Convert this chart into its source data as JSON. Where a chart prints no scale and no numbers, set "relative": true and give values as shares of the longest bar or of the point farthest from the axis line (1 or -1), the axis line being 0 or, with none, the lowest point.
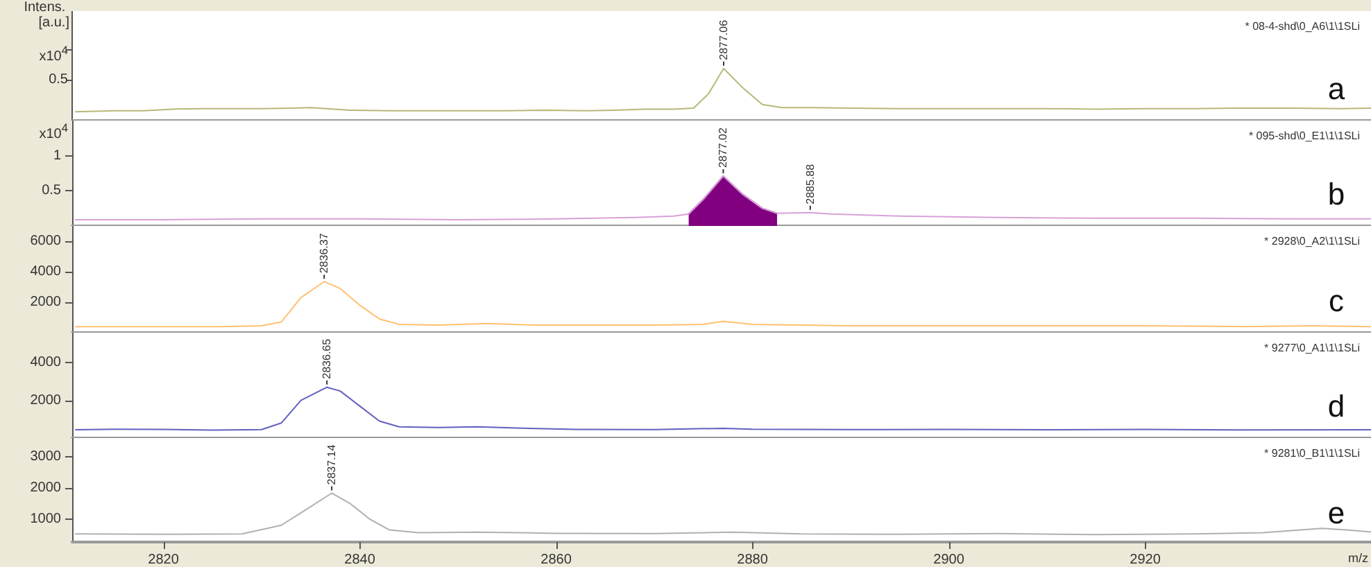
{
  "chart_data": [
    {
      "type": "line",
      "title": "* 08-4-shd\\0_A6\\1\\1SLi",
      "subtitle": "a",
      "ylabel": "Intens. [a.u.]",
      "annotations": [
        "x10$^{4}$",
        "0.5",
        {
          "text": "2877.06",
          "x": 2877.06,
          "y": 1
        }
      ],
      "relative": true,
      "xlim": [
        2810.7,
        2943
      ],
      "tick_labels": "y",
      "marker": "none",
      "series": [
        {
          "color": "#b8b878",
          "x": [
            2811,
            2815,
            2818,
            2821,
            2824,
            2827,
            2830,
            2833,
            2835,
            2839,
            2843,
            2847,
            2851,
            2855,
            2859,
            2863,
            2866,
            2869,
            2872,
            2874,
            2875.5,
            2877.06,
            2879,
            2881,
            2883,
            2886,
            2890,
            2895,
            2900,
            2905,
            2910,
            2915,
            2920,
            2925,
            2930,
            2935,
            2940,
            2943
          ],
          "values": [
            0.17,
            0.19,
            0.19,
            0.22,
            0.23,
            0.23,
            0.23,
            0.24,
            0.25,
            0.2,
            0.19,
            0.19,
            0.19,
            0.19,
            0.2,
            0.19,
            0.2,
            0.22,
            0.22,
            0.24,
            0.51,
            1,
            0.63,
            0.31,
            0.25,
            0.25,
            0.24,
            0.23,
            0.23,
            0.23,
            0.23,
            0.22,
            0.23,
            0.23,
            0.24,
            0.24,
            0.23,
            0.24
          ]
        }
      ]
    },
    {
      "type": "line",
      "title": "* 095-shd\\0_E1\\1\\1SLi",
      "subtitle": "b",
      "annotations": [
        "x10$^{4}$",
        {
          "text": "2877.02",
          "x": 2877.02,
          "y": 0.71
        },
        {
          "text": "2885.88",
          "x": 2885.88,
          "y": 0.19
        }
      ],
      "xlim": [
        2810.7,
        2943
      ],
      "ylim": [
        0,
        1.5
      ],
      "yticks": [
        0.5,
        1.0
      ],
      "tick_labels": "y",
      "marker": "none",
      "series": [
        {
          "type": "area",
          "color": "#800080",
          "x": [
            2873.5,
            2875,
            2877.02,
            2879,
            2881,
            2882.5
          ],
          "values": [
            0.17,
            0.38,
            0.71,
            0.45,
            0.25,
            0.18
          ]
        },
        {
          "color": "#d8a0d8",
          "x": [
            2811,
            2820,
            2830,
            2840,
            2850,
            2860,
            2868,
            2872,
            2873.5,
            2875,
            2877.02,
            2879,
            2881,
            2882.5,
            2885.88,
            2888,
            2895,
            2905,
            2915,
            2925,
            2935,
            2943
          ],
          "values": [
            0.09,
            0.09,
            0.1,
            0.1,
            0.09,
            0.1,
            0.12,
            0.14,
            0.17,
            0.38,
            0.71,
            0.45,
            0.25,
            0.18,
            0.19,
            0.17,
            0.14,
            0.12,
            0.11,
            0.11,
            0.1,
            0.1
          ]
        }
      ]
    },
    {
      "type": "line",
      "title": "* 2928\\0_A2\\1\\1SLi",
      "subtitle": "c",
      "annotations": [
        {
          "text": "2836.37",
          "x": 2836.37,
          "y": 3350
        }
      ],
      "xlim": [
        2810.7,
        2943
      ],
      "ylim": [
        0,
        7000
      ],
      "yticks": [
        2000,
        4000,
        6000
      ],
      "tick_labels": "y",
      "marker": "none",
      "series": [
        {
          "color": "#ffc070",
          "x": [
            2811,
            2820,
            2826,
            2830,
            2832,
            2834,
            2836.37,
            2838,
            2840,
            2842,
            2844,
            2848,
            2853,
            2858,
            2865,
            2870,
            2875,
            2877,
            2880,
            2885,
            2890,
            2900,
            2910,
            2920,
            2930,
            2937,
            2943
          ],
          "values": [
            400,
            400,
            400,
            450,
            700,
            2300,
            3350,
            2900,
            1800,
            900,
            550,
            500,
            600,
            500,
            500,
            500,
            550,
            750,
            550,
            500,
            450,
            450,
            450,
            450,
            400,
            450,
            400
          ]
        }
      ]
    },
    {
      "type": "line",
      "title": "* 9277\\0_A1\\1\\1SLi",
      "subtitle": "d",
      "annotations": [
        {
          "text": "2836.65",
          "x": 2836.65,
          "y": 2700
        }
      ],
      "xlim": [
        2810.7,
        2943
      ],
      "ylim": [
        0,
        5600
      ],
      "yticks": [
        2000,
        4000
      ],
      "tick_labels": "y",
      "marker": "none",
      "series": [
        {
          "color": "#6060c0",
          "x": [
            2811,
            2815,
            2820,
            2825,
            2830,
            2832,
            2834,
            2836.65,
            2838,
            2840,
            2842,
            2844,
            2848,
            2852,
            2856,
            2862,
            2870,
            2877,
            2880,
            2890,
            2900,
            2910,
            2920,
            2930,
            2943
          ],
          "values": [
            440,
            470,
            460,
            420,
            450,
            800,
            2000,
            2700,
            2500,
            1700,
            900,
            600,
            560,
            600,
            530,
            460,
            450,
            520,
            470,
            450,
            460,
            440,
            460,
            430,
            440
          ]
        }
      ]
    },
    {
      "type": "line",
      "title": "* 9281\\0_B1\\1\\1SLi",
      "subtitle": "e",
      "xlabel": "m/z",
      "annotations": [
        {
          "text": "2837.14",
          "x": 2837.14,
          "y": 1830
        }
      ],
      "xlim": [
        2810.7,
        2943
      ],
      "ylim": [
        260,
        3600
      ],
      "yticks": [
        1000,
        2000,
        3000
      ],
      "xticks": [
        2820,
        2840,
        2860,
        2880,
        2900,
        2920
      ],
      "marker": "none",
      "series": [
        {
          "color": "#b0b0b0",
          "x": [
            2811,
            2820,
            2828,
            2832,
            2834,
            2837.14,
            2839,
            2841,
            2843,
            2846,
            2852,
            2860,
            2870,
            2878,
            2885,
            2895,
            2905,
            2915,
            2925,
            2932,
            2938,
            2941,
            2943
          ],
          "values": [
            520,
            510,
            520,
            800,
            1200,
            1830,
            1500,
            1000,
            650,
            560,
            580,
            540,
            530,
            580,
            520,
            510,
            530,
            500,
            520,
            560,
            700,
            640,
            580
          ]
        }
      ]
    }
  ]
}
